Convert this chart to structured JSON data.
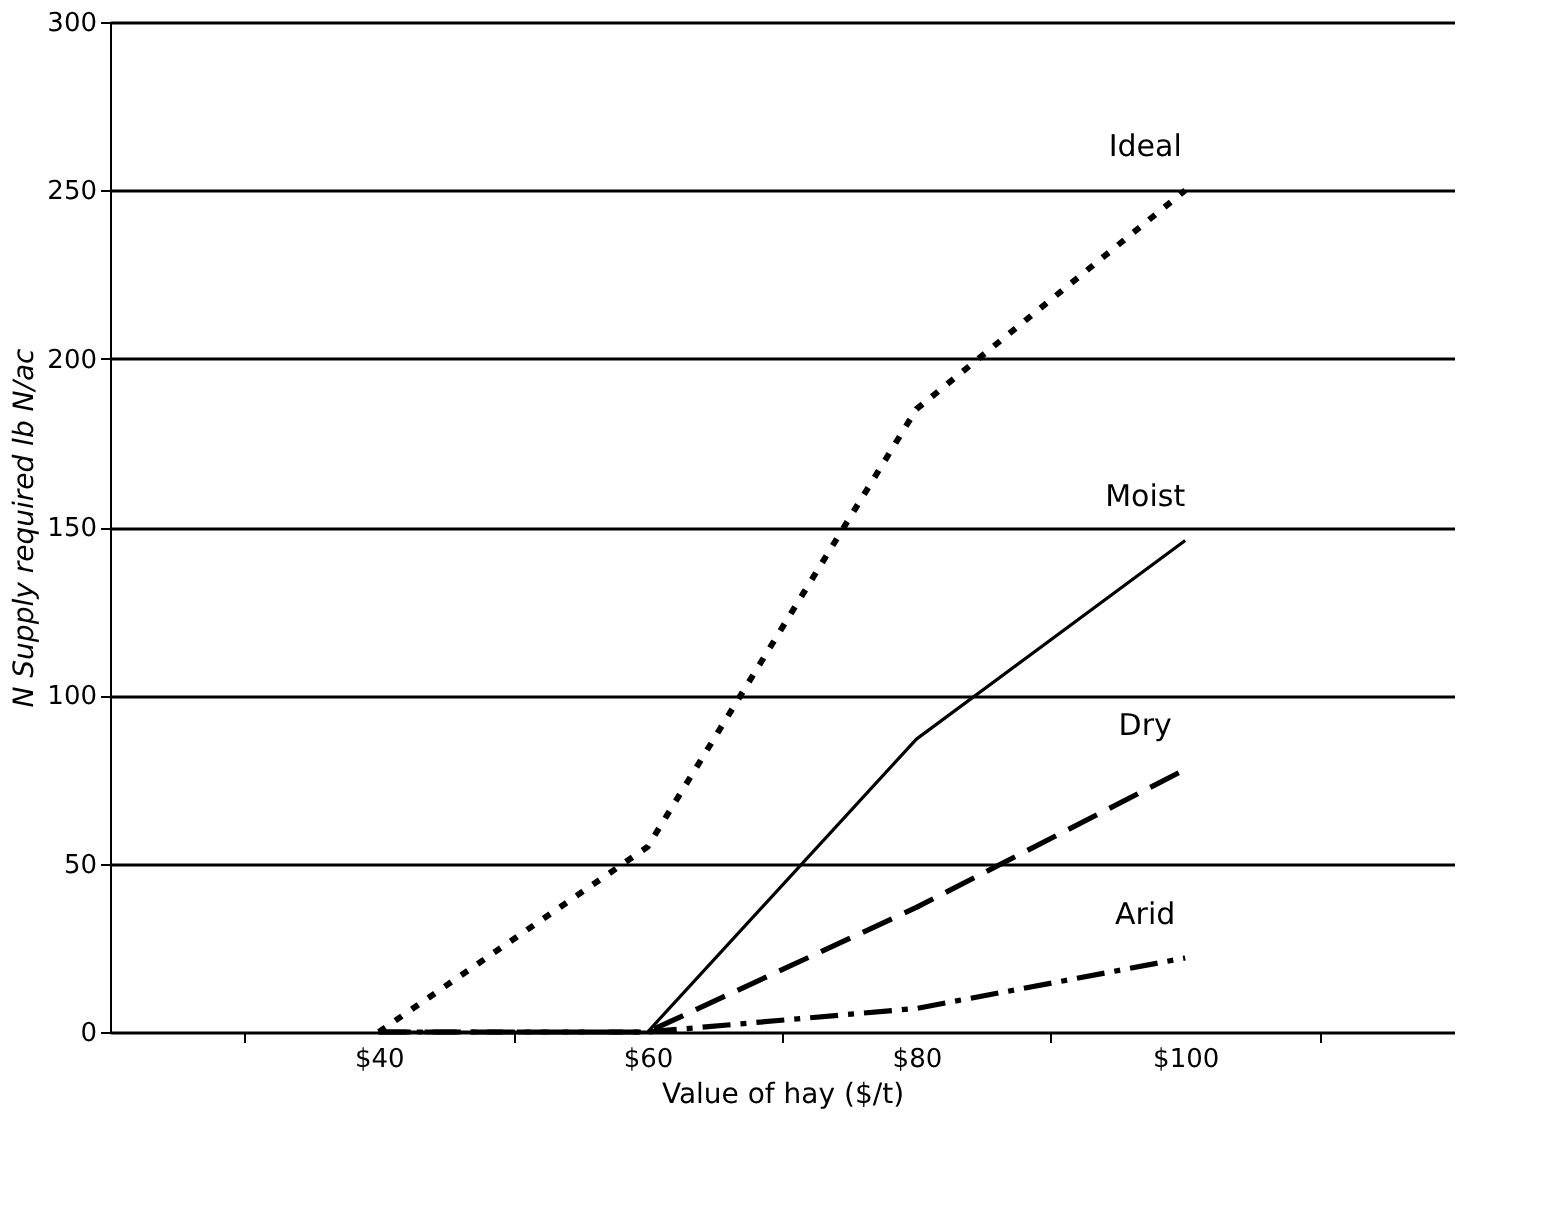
{
  "chart_data": {
    "type": "line",
    "xlabel": "Value of hay ($/t)",
    "ylabel": "N Supply required lb N/ac",
    "categories": [
      "$40",
      "$60",
      "$80",
      "$100"
    ],
    "series": [
      {
        "name": "Ideal",
        "color": "#000000",
        "line_style": "dotted",
        "values": [
          0,
          55,
          185,
          250
        ]
      },
      {
        "name": "Moist",
        "color": "#000000",
        "line_style": "solid",
        "values": [
          0,
          0,
          87,
          146
        ]
      },
      {
        "name": "Dry",
        "color": "#000000",
        "line_style": "dashed",
        "values": [
          0,
          0,
          37,
          78
        ]
      },
      {
        "name": "Arid",
        "color": "#000000",
        "line_style": "dashdot",
        "values": [
          0,
          0,
          7,
          22
        ]
      }
    ],
    "ylim": [
      0,
      300
    ],
    "yticks": [
      0,
      50,
      100,
      150,
      200,
      250,
      300
    ],
    "grid": "y",
    "marker": "none"
  }
}
